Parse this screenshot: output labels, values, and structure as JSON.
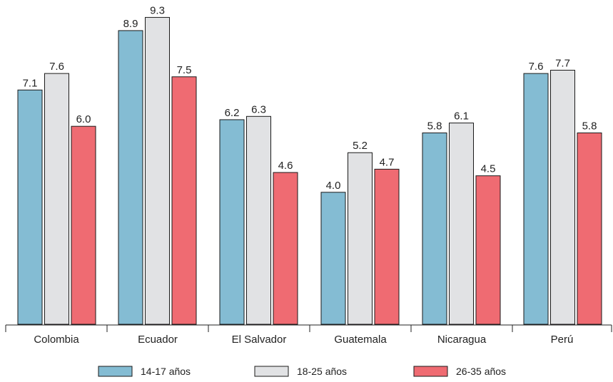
{
  "chart_data": {
    "type": "bar",
    "categories": [
      "Colombia",
      "Ecuador",
      "El Salvador",
      "Guatemala",
      "Nicaragua",
      "Perú"
    ],
    "series": [
      {
        "name": "14-17 años",
        "color": "#84bcd3",
        "values": [
          7.1,
          8.9,
          6.2,
          4.0,
          5.8,
          7.6
        ]
      },
      {
        "name": "18-25 años",
        "color": "#e1e2e4",
        "values": [
          7.6,
          9.3,
          6.3,
          5.2,
          6.1,
          7.7
        ]
      },
      {
        "name": "26-35 años",
        "color": "#ef6b72",
        "values": [
          6.0,
          7.5,
          4.6,
          4.7,
          4.5,
          5.8
        ]
      }
    ],
    "value_labels": [
      [
        "7.1",
        "8.9",
        "6.2",
        "4.0",
        "5.8",
        "7.6"
      ],
      [
        "7.6",
        "9.3",
        "6.3",
        "5.2",
        "6.1",
        "7.7"
      ],
      [
        "6.0",
        "7.5",
        "4.6",
        "4.7",
        "4.5",
        "5.8"
      ]
    ],
    "title": "",
    "xlabel": "",
    "ylabel": "",
    "ylim": [
      0,
      9.3
    ],
    "grid": false,
    "legend_position": "bottom"
  }
}
